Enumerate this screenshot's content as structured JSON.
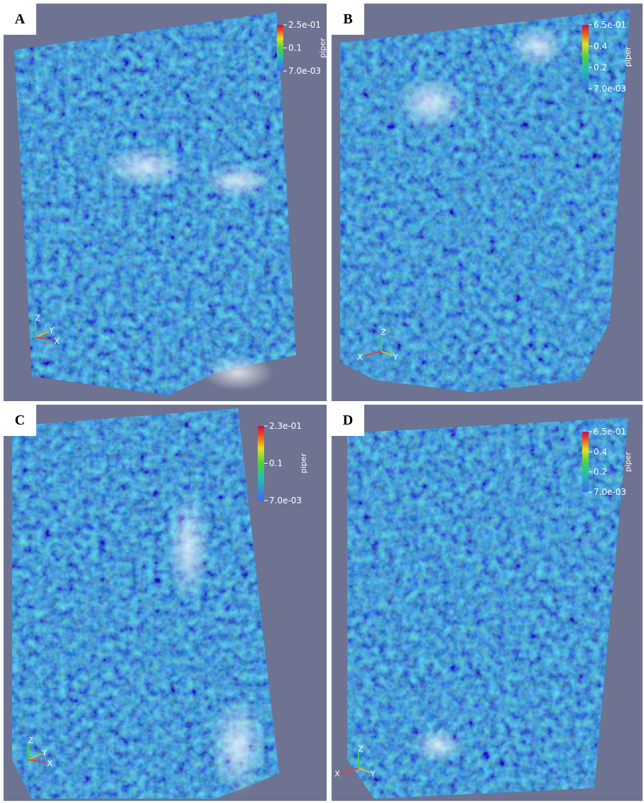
{
  "panels": [
    {
      "label": "A",
      "colorbar": {
        "title": "piper",
        "ticks": [
          "2.5e-01",
          "0.1",
          "7.0e-03"
        ]
      },
      "axes": [
        "Z",
        "Y",
        "X"
      ]
    },
    {
      "label": "B",
      "colorbar": {
        "title": "piper",
        "ticks": [
          "6.5e-01",
          "0.4",
          "0.2",
          "7.0e-03"
        ]
      },
      "axes": [
        "Z",
        "X",
        "Y"
      ]
    },
    {
      "label": "C",
      "colorbar": {
        "title": "piper",
        "ticks": [
          "2.3e-01",
          "0.1",
          "7.0e-03"
        ]
      },
      "axes": [
        "Z",
        "Y",
        "X"
      ]
    },
    {
      "label": "D",
      "colorbar": {
        "title": "piper",
        "ticks": [
          "6.5e-01",
          "0.4",
          "0.2",
          "7.0e-03"
        ]
      },
      "axes": [
        "Z",
        "X",
        "Y"
      ]
    }
  ]
}
